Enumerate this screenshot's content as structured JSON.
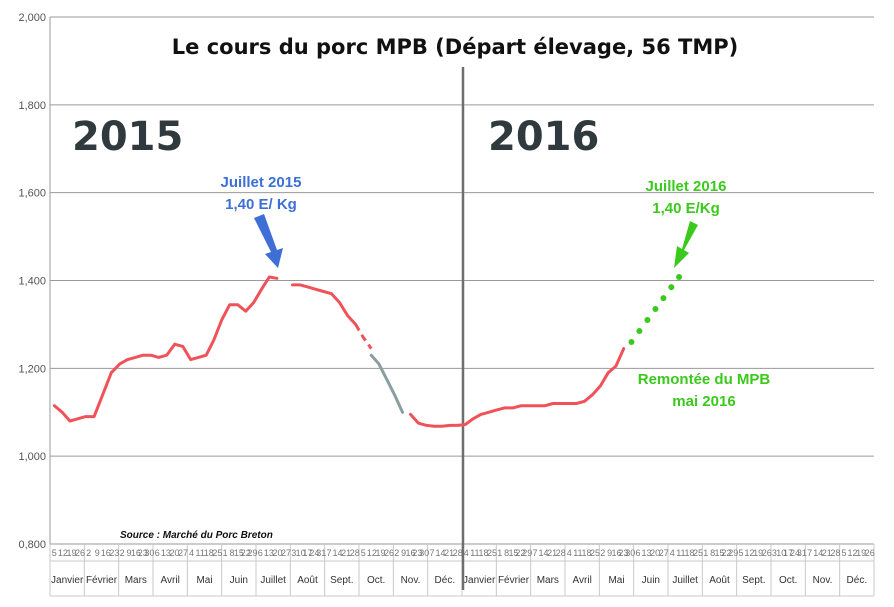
{
  "chart_data": {
    "type": "line",
    "title": "Le cours du porc  MPB (Départ élevage, 56 TMP)",
    "ylim": [
      0.8,
      2.0
    ],
    "yticks": [
      "0,800",
      "1,000",
      "1,200",
      "1,400",
      "1,600",
      "1,800",
      "2,000"
    ],
    "grid": true,
    "year_labels": [
      "2015",
      "2016"
    ],
    "months": [
      "Janvier",
      "Février",
      "Mars",
      "Avril",
      "Mai",
      "Juin",
      "Juillet",
      "Août",
      "Sept.",
      "Oct.",
      "Nov.",
      "Déc.",
      "Janvier",
      "Février",
      "Mars",
      "Avril",
      "Mai",
      "Juin",
      "Juillet",
      "Août",
      "Sept.",
      "Oct.",
      "Nov.",
      "Déc."
    ],
    "week_labels": [
      [
        "5",
        "12",
        "19",
        "26"
      ],
      [
        "2",
        "9",
        "16",
        "23"
      ],
      [
        "2",
        "9",
        "16",
        "23",
        "30"
      ],
      [
        "6",
        "13",
        "20",
        "27"
      ],
      [
        "4",
        "11",
        "18",
        "25"
      ],
      [
        "1",
        "8",
        "15",
        "22",
        "29"
      ],
      [
        "6",
        "13",
        "20",
        "27"
      ],
      [
        "3",
        "10",
        "17",
        "24",
        "31"
      ],
      [
        "7",
        "14",
        "21",
        "28"
      ],
      [
        "5",
        "12",
        "19",
        "26"
      ],
      [
        "2",
        "9",
        "16",
        "23",
        "30"
      ],
      [
        "7",
        "14",
        "21",
        "28"
      ],
      [
        "4",
        "11",
        "18",
        "25"
      ],
      [
        "1",
        "8",
        "15",
        "22",
        "29"
      ],
      [
        "7",
        "14",
        "21",
        "28"
      ],
      [
        "4",
        "11",
        "18",
        "25"
      ],
      [
        "2",
        "9",
        "16",
        "23",
        "30"
      ],
      [
        "6",
        "13",
        "20",
        "27"
      ],
      [
        "4",
        "11",
        "18",
        "25"
      ],
      [
        "1",
        "8",
        "15",
        "22",
        "29"
      ],
      [
        "5",
        "12",
        "19",
        "26"
      ],
      [
        "3",
        "10",
        "17",
        "24",
        "31"
      ],
      [
        "7",
        "14",
        "21",
        "28"
      ],
      [
        "5",
        "12",
        "19",
        "26"
      ]
    ],
    "series": [
      {
        "color": "#f0525a",
        "style": "solid",
        "points": [
          [
            "2015-01-05",
            1.115
          ],
          [
            "2015-01-12",
            1.1
          ],
          [
            "2015-01-19",
            1.08
          ],
          [
            "2015-01-26",
            1.085
          ],
          [
            "2015-02-02",
            1.09
          ],
          [
            "2015-02-09",
            1.09
          ],
          [
            "2015-02-16",
            1.14
          ],
          [
            "2015-02-23",
            1.19
          ],
          [
            "2015-03-02",
            1.21
          ],
          [
            "2015-03-09",
            1.22
          ],
          [
            "2015-03-16",
            1.225
          ],
          [
            "2015-03-23",
            1.23
          ],
          [
            "2015-03-30",
            1.23
          ],
          [
            "2015-04-06",
            1.225
          ],
          [
            "2015-04-13",
            1.23
          ],
          [
            "2015-04-20",
            1.255
          ],
          [
            "2015-04-27",
            1.25
          ],
          [
            "2015-05-04",
            1.22
          ],
          [
            "2015-05-11",
            1.225
          ],
          [
            "2015-05-18",
            1.23
          ],
          [
            "2015-05-25",
            1.265
          ],
          [
            "2015-06-01",
            1.31
          ],
          [
            "2015-06-08",
            1.345
          ],
          [
            "2015-06-15",
            1.345
          ],
          [
            "2015-06-22",
            1.33
          ],
          [
            "2015-06-29",
            1.35
          ],
          [
            "2015-07-06",
            1.38
          ],
          [
            "2015-07-13",
            1.408
          ],
          [
            "2015-07-20",
            1.405
          ]
        ]
      },
      {
        "color": "#f0525a",
        "style": "solid",
        "points": [
          [
            "2015-08-03",
            1.39
          ],
          [
            "2015-08-10",
            1.39
          ],
          [
            "2015-08-17",
            1.385
          ],
          [
            "2015-08-24",
            1.38
          ],
          [
            "2015-08-31",
            1.375
          ],
          [
            "2015-09-07",
            1.37
          ],
          [
            "2015-09-14",
            1.35
          ],
          [
            "2015-09-21",
            1.32
          ],
          [
            "2015-09-28",
            1.3
          ]
        ]
      },
      {
        "color": "#f0525a",
        "style": "dashed",
        "points": [
          [
            "2015-09-28",
            1.3
          ],
          [
            "2015-10-05",
            1.27
          ],
          [
            "2015-10-12",
            1.245
          ]
        ]
      },
      {
        "color": "#8a9ea2",
        "style": "solid",
        "points": [
          [
            "2015-10-12",
            1.23
          ],
          [
            "2015-10-19",
            1.21
          ],
          [
            "2015-10-26",
            1.175
          ],
          [
            "2015-11-02",
            1.14
          ],
          [
            "2015-11-09",
            1.1
          ]
        ]
      },
      {
        "color": "#f0525a",
        "style": "solid",
        "points": [
          [
            "2015-11-16",
            1.095
          ],
          [
            "2015-11-23",
            1.075
          ],
          [
            "2015-11-30",
            1.07
          ],
          [
            "2015-12-07",
            1.068
          ],
          [
            "2015-12-14",
            1.068
          ],
          [
            "2015-12-21",
            1.07
          ],
          [
            "2015-12-28",
            1.07
          ],
          [
            "2016-01-04",
            1.072
          ],
          [
            "2016-01-11",
            1.085
          ],
          [
            "2016-01-18",
            1.095
          ],
          [
            "2016-01-25",
            1.1
          ],
          [
            "2016-02-01",
            1.105
          ],
          [
            "2016-02-08",
            1.11
          ],
          [
            "2016-02-15",
            1.11
          ],
          [
            "2016-02-22",
            1.115
          ],
          [
            "2016-02-29",
            1.115
          ],
          [
            "2016-03-07",
            1.115
          ],
          [
            "2016-03-14",
            1.115
          ],
          [
            "2016-03-21",
            1.12
          ],
          [
            "2016-03-28",
            1.12
          ],
          [
            "2016-04-04",
            1.12
          ],
          [
            "2016-04-11",
            1.12
          ],
          [
            "2016-04-18",
            1.125
          ],
          [
            "2016-04-25",
            1.14
          ],
          [
            "2016-05-02",
            1.16
          ],
          [
            "2016-05-09",
            1.19
          ],
          [
            "2016-05-16",
            1.205
          ],
          [
            "2016-05-23",
            1.245
          ]
        ]
      },
      {
        "color": "#3ac91c",
        "style": "dotted",
        "points": [
          [
            "2016-05-30",
            1.26
          ],
          [
            "2016-06-06",
            1.285
          ],
          [
            "2016-06-13",
            1.31
          ],
          [
            "2016-06-20",
            1.335
          ],
          [
            "2016-06-27",
            1.36
          ],
          [
            "2016-07-04",
            1.385
          ],
          [
            "2016-07-11",
            1.408
          ]
        ]
      }
    ],
    "annotations": {
      "juillet_2015": {
        "line1": "Juillet 2015",
        "line2": "1,40 E/ Kg",
        "color": "#3d6fd6"
      },
      "juillet_2016": {
        "line1": "Juillet 2016",
        "line2": "1,40 E/Kg",
        "color": "#3ac91c"
      },
      "remontee": {
        "line1": "Remontée du MPB",
        "line2": "mai 2016",
        "color": "#3ac91c"
      }
    },
    "source": "Source : Marché du Porc Breton"
  }
}
